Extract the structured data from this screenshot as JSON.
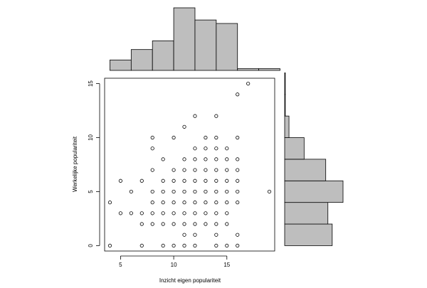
{
  "chart_data": [
    {
      "type": "scatter",
      "xlabel": "Inzicht eigen populariteit",
      "ylabel": "Werkelijke populariteit",
      "xlim": [
        3.5,
        19.5
      ],
      "ylim": [
        -0.5,
        15.5
      ],
      "x_ticks": [
        5,
        10,
        15
      ],
      "y_ticks": [
        0,
        5,
        10,
        15
      ],
      "x_tick_labels": [
        "5",
        "10",
        "15"
      ],
      "y_tick_labels": [
        "0",
        "5",
        "10",
        "15"
      ],
      "marker": "open-circle",
      "grid": false,
      "points": [
        [
          4,
          0
        ],
        [
          7,
          0
        ],
        [
          9,
          0
        ],
        [
          10,
          0
        ],
        [
          11,
          0
        ],
        [
          12,
          0
        ],
        [
          14,
          0
        ],
        [
          15,
          0
        ],
        [
          16,
          0
        ],
        [
          11,
          1
        ],
        [
          12,
          1
        ],
        [
          14,
          1
        ],
        [
          16,
          1
        ],
        [
          7,
          2
        ],
        [
          8,
          2
        ],
        [
          9,
          2
        ],
        [
          10,
          2
        ],
        [
          11,
          2
        ],
        [
          12,
          2
        ],
        [
          13,
          2
        ],
        [
          14,
          2
        ],
        [
          15,
          2
        ],
        [
          5,
          3
        ],
        [
          6,
          3
        ],
        [
          7,
          3
        ],
        [
          8,
          3
        ],
        [
          9,
          3
        ],
        [
          10,
          3
        ],
        [
          11,
          3
        ],
        [
          12,
          3
        ],
        [
          13,
          3
        ],
        [
          14,
          3
        ],
        [
          15,
          3
        ],
        [
          4,
          4
        ],
        [
          8,
          4
        ],
        [
          9,
          4
        ],
        [
          10,
          4
        ],
        [
          11,
          4
        ],
        [
          12,
          4
        ],
        [
          13,
          4
        ],
        [
          14,
          4
        ],
        [
          15,
          4
        ],
        [
          16,
          4
        ],
        [
          6,
          5
        ],
        [
          8,
          5
        ],
        [
          9,
          5
        ],
        [
          10,
          5
        ],
        [
          11,
          5
        ],
        [
          12,
          5
        ],
        [
          13,
          5
        ],
        [
          14,
          5
        ],
        [
          15,
          5
        ],
        [
          16,
          5
        ],
        [
          19,
          5
        ],
        [
          5,
          6
        ],
        [
          7,
          6
        ],
        [
          9,
          6
        ],
        [
          10,
          6
        ],
        [
          11,
          6
        ],
        [
          12,
          6
        ],
        [
          13,
          6
        ],
        [
          14,
          6
        ],
        [
          15,
          6
        ],
        [
          16,
          6
        ],
        [
          8,
          7
        ],
        [
          10,
          7
        ],
        [
          11,
          7
        ],
        [
          12,
          7
        ],
        [
          13,
          7
        ],
        [
          14,
          7
        ],
        [
          15,
          7
        ],
        [
          16,
          7
        ],
        [
          9,
          8
        ],
        [
          11,
          8
        ],
        [
          12,
          8
        ],
        [
          13,
          8
        ],
        [
          14,
          8
        ],
        [
          15,
          8
        ],
        [
          16,
          8
        ],
        [
          8,
          9
        ],
        [
          12,
          9
        ],
        [
          13,
          9
        ],
        [
          14,
          9
        ],
        [
          15,
          9
        ],
        [
          8,
          10
        ],
        [
          10,
          10
        ],
        [
          13,
          10
        ],
        [
          14,
          10
        ],
        [
          16,
          10
        ],
        [
          11,
          11
        ],
        [
          12,
          12
        ],
        [
          14,
          12
        ],
        [
          16,
          14
        ],
        [
          17,
          15
        ]
      ]
    },
    {
      "type": "bar",
      "orientation": "vertical",
      "description_of": "marginal histogram of x",
      "bin_edges": [
        4,
        6,
        8,
        10,
        12,
        14,
        16,
        18,
        20
      ],
      "values": [
        6,
        12,
        17,
        36,
        29,
        27,
        1,
        1
      ]
    },
    {
      "type": "bar",
      "orientation": "horizontal",
      "description_of": "marginal histogram of y",
      "bin_edges": [
        0,
        2,
        4,
        6,
        8,
        10,
        12,
        14,
        16
      ],
      "values": [
        22,
        20,
        27,
        19,
        9,
        2,
        0.3,
        0.3
      ]
    }
  ],
  "colors": {
    "bar_fill": "#bebebe",
    "stroke": "#000000",
    "background": "#ffffff"
  }
}
